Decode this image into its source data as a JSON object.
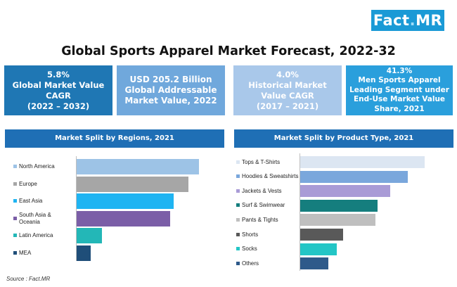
{
  "brand": {
    "name": "Fact",
    "sep": ".",
    "suffix": "MR"
  },
  "title": "Global Sports Apparel Market Forecast, 2022-32",
  "kpis": [
    {
      "lines": [
        "5.8%",
        "Global Market Value",
        "CAGR",
        "(2022 – 2032)"
      ],
      "color": "#1f77b4"
    },
    {
      "lines": [
        "USD 205.2 Billion",
        "Global Addressable",
        "Market Value, 2022"
      ],
      "color": "#70a8dc"
    },
    {
      "lines": [
        "4.0%",
        "Historical Market",
        "Value CAGR",
        "(2017 – 2021)"
      ],
      "color": "#a9c8ea"
    },
    {
      "lines": [
        "41.3%",
        "Men Sports Apparel",
        "Leading Segment under",
        "End-Use Market Value",
        "Share, 2021"
      ],
      "color": "#2a9fdc"
    }
  ],
  "chart_data": [
    {
      "type": "bar",
      "orientation": "horizontal",
      "title": "Market Split by Regions, 2021",
      "categories": [
        "North America",
        "Europe",
        "East Asia",
        "South Asia & Oceania",
        "Latin America",
        "MEA"
      ],
      "values": [
        34.0,
        31.0,
        27.0,
        26.0,
        7.0,
        4.0
      ],
      "colors": [
        "#9dc3e6",
        "#a6a6a6",
        "#1fb4f2",
        "#7b5ea7",
        "#23b7b7",
        "#1f4e79"
      ],
      "grid": false,
      "legend": "none"
    },
    {
      "type": "bar",
      "orientation": "horizontal",
      "title": "Market Split by Product Type, 2021",
      "categories": [
        "Tops & T-Shirts",
        "Hoodies & Sweatshirts",
        "Jackets & Vests",
        "Surf & Swimwear",
        "Pants & Tights",
        "Shorts",
        "Socks",
        "Others"
      ],
      "values": [
        29.0,
        25.0,
        21.0,
        18.0,
        17.5,
        10.0,
        8.5,
        6.5
      ],
      "colors": [
        "#dce6f2",
        "#7aa7dc",
        "#a99bd6",
        "#157e7e",
        "#bfbfbf",
        "#595959",
        "#23c6c6",
        "#2e5a8a"
      ],
      "grid": false,
      "legend": "none"
    }
  ],
  "source": "Source : Fact.MR"
}
